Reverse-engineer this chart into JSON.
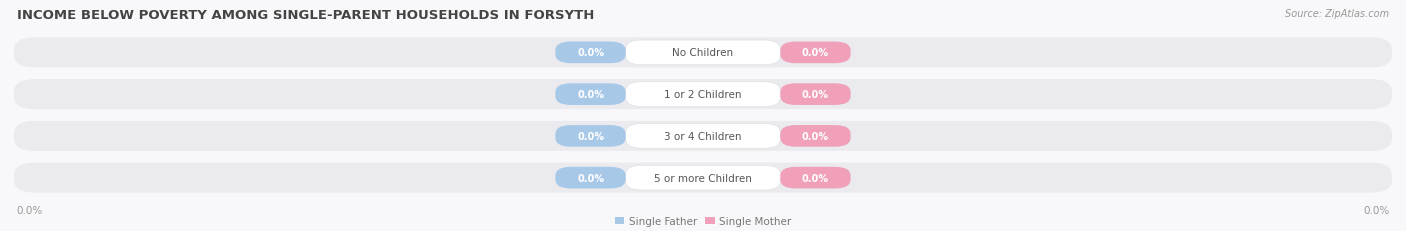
{
  "title": "INCOME BELOW POVERTY AMONG SINGLE-PARENT HOUSEHOLDS IN FORSYTH",
  "source": "Source: ZipAtlas.com",
  "categories": [
    "No Children",
    "1 or 2 Children",
    "3 or 4 Children",
    "5 or more Children"
  ],
  "single_father_values": [
    0.0,
    0.0,
    0.0,
    0.0
  ],
  "single_mother_values": [
    0.0,
    0.0,
    0.0,
    0.0
  ],
  "father_color": "#a8c8e8",
  "mother_color": "#f0a0b8",
  "bar_bg_color": "#ebebef",
  "background_color": "#f8f8fa",
  "title_fontsize": 9.5,
  "source_fontsize": 7,
  "label_fontsize": 7.5,
  "category_fontsize": 7.5,
  "value_fontsize": 7,
  "axis_label_left": "0.0%",
  "axis_label_right": "0.0%"
}
